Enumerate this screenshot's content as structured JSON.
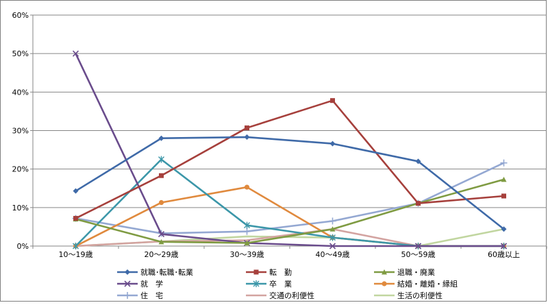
{
  "chart_data": {
    "type": "line",
    "categories": [
      "10～19歳",
      "20～29歳",
      "30～39歳",
      "40～49歳",
      "50～59歳",
      "60歳以上"
    ],
    "y_ticks": [
      "0%",
      "10%",
      "20%",
      "30%",
      "40%",
      "50%",
      "60%"
    ],
    "ylim": [
      0,
      60
    ],
    "grid": true,
    "legend_position": "bottom",
    "series": [
      {
        "name": "就職･転職･転業",
        "color": "#3f6aa8",
        "marker": "diamond",
        "values": [
          14.3,
          28.0,
          28.3,
          26.6,
          22.0,
          4.4
        ]
      },
      {
        "name": "転　勤",
        "color": "#a6403c",
        "marker": "square",
        "values": [
          7.2,
          18.3,
          30.7,
          37.8,
          11.1,
          13.0
        ]
      },
      {
        "name": "退職・廃業",
        "color": "#7f9b42",
        "marker": "triangle",
        "values": [
          7.0,
          1.1,
          0.8,
          4.4,
          11.1,
          17.3
        ]
      },
      {
        "name": "就　学",
        "color": "#6a4c8c",
        "marker": "x",
        "values": [
          50.0,
          3.1,
          0.8,
          0.0,
          0.0,
          0.0
        ]
      },
      {
        "name": "卒　業",
        "color": "#3c97a9",
        "marker": "asterisk",
        "values": [
          0.0,
          22.5,
          5.4,
          2.2,
          0.0,
          0.0
        ]
      },
      {
        "name": "結婚・離婚・縁組",
        "color": "#e08a3e",
        "marker": "circle",
        "values": [
          0.0,
          11.3,
          15.3,
          2.2,
          0.0,
          0.0
        ]
      },
      {
        "name": "住　宅",
        "color": "#94a8d2",
        "marker": "plus",
        "values": [
          7.2,
          3.3,
          3.8,
          6.5,
          11.1,
          21.6
        ]
      },
      {
        "name": "交通の利便性",
        "color": "#d3a3a0",
        "marker": "none",
        "values": [
          0.0,
          1.2,
          1.5,
          4.4,
          0.0,
          0.0
        ]
      },
      {
        "name": "生活の利便性",
        "color": "#c1d6a0",
        "marker": "none",
        "values": [
          0.0,
          1.2,
          2.5,
          2.2,
          0.0,
          4.4
        ]
      }
    ]
  }
}
